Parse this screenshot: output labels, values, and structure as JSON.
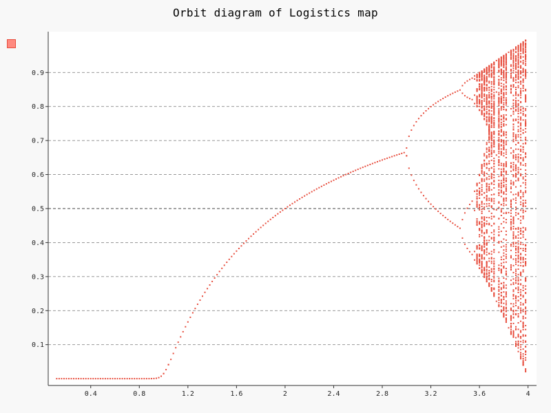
{
  "chart_data": {
    "type": "scatter",
    "title": "Orbit diagram of Logistics map",
    "xlabel": "",
    "ylabel": "",
    "xlim": [
      0.05,
      4.07
    ],
    "ylim": [
      -0.02,
      1.02
    ],
    "x_ticks": [
      0.4,
      0.8,
      1.2,
      1.6,
      2,
      2.4,
      2.8,
      3.2,
      3.6,
      4
    ],
    "x_tick_labels": [
      "0.4",
      "0.8",
      "1.2",
      "1.6",
      "2",
      "2.4",
      "2.8",
      "3.2",
      "3.6",
      "4"
    ],
    "y_ticks": [
      0.1,
      0.2,
      0.3,
      0.4,
      0.5,
      0.6,
      0.7,
      0.8,
      0.9
    ],
    "y_tick_labels": [
      "0.1",
      "0.2",
      "0.3",
      "0.4",
      "0.5",
      "0.6",
      "0.7",
      "0.8",
      "0.9"
    ],
    "grid": "horizontal dashed",
    "legend_position": "top-left",
    "series": [
      {
        "color": "#e74c3c",
        "r_min": 0.12,
        "r_max": 4.0,
        "r_step": 0.02,
        "points": "x = r, y = orbit values of x(n+1) = r·x(n)·(1 − x(n)) after transient"
      }
    ]
  }
}
